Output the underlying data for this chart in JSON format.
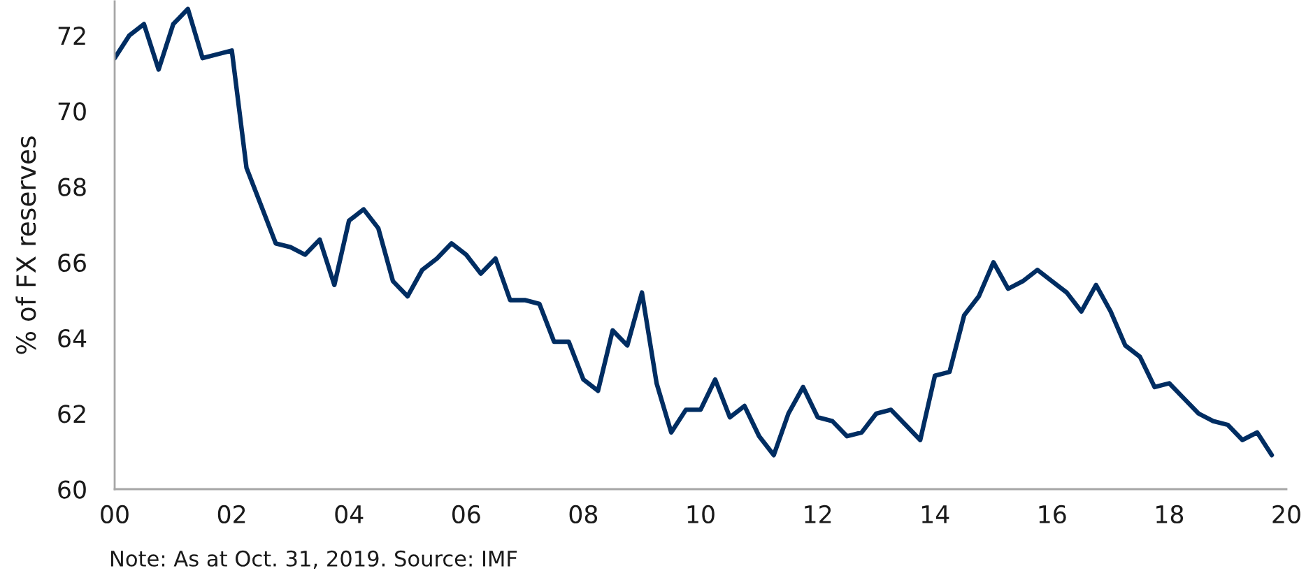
{
  "chart_data": {
    "type": "line",
    "ylabel": "% of FX reserves",
    "annotations": [
      "Note: As at Oct. 31, 2019. Source: IMF"
    ],
    "x": [
      2000,
      2000.25,
      2000.5,
      2000.75,
      2001,
      2001.25,
      2001.5,
      2001.75,
      2002,
      2002.25,
      2002.5,
      2002.75,
      2003,
      2003.25,
      2003.5,
      2003.75,
      2004,
      2004.25,
      2004.5,
      2004.75,
      2005,
      2005.25,
      2005.5,
      2005.75,
      2006,
      2006.25,
      2006.5,
      2006.75,
      2007,
      2007.25,
      2007.5,
      2007.75,
      2008,
      2008.25,
      2008.5,
      2008.75,
      2009,
      2009.25,
      2009.5,
      2009.75,
      2010,
      2010.25,
      2010.5,
      2010.75,
      2011,
      2011.25,
      2011.5,
      2011.75,
      2012,
      2012.25,
      2012.5,
      2012.75,
      2013,
      2013.25,
      2013.5,
      2013.75,
      2014,
      2014.25,
      2014.5,
      2014.75,
      2015,
      2015.25,
      2015.5,
      2015.75,
      2016,
      2016.25,
      2016.5,
      2016.75,
      2017,
      2017.25,
      2017.5,
      2017.75,
      2018,
      2018.25,
      2018.5,
      2018.75,
      2019,
      2019.25,
      2019.5,
      2019.75
    ],
    "series": [
      {
        "color": "#002d62",
        "values": [
          71.4,
          72.0,
          72.3,
          71.1,
          72.3,
          72.7,
          71.4,
          71.5,
          71.6,
          68.5,
          67.5,
          66.5,
          66.4,
          66.2,
          66.6,
          65.4,
          67.1,
          67.4,
          66.9,
          65.5,
          65.1,
          65.8,
          66.1,
          66.5,
          66.2,
          65.7,
          66.1,
          65.0,
          65.0,
          64.9,
          63.9,
          63.9,
          62.9,
          62.6,
          64.2,
          63.8,
          65.2,
          62.8,
          61.5,
          62.1,
          62.1,
          62.9,
          61.9,
          62.2,
          61.4,
          60.9,
          62.0,
          62.7,
          61.9,
          61.8,
          61.4,
          61.5,
          62.0,
          62.1,
          61.7,
          61.3,
          63.0,
          63.1,
          64.6,
          65.1,
          66.0,
          65.3,
          65.5,
          65.8,
          65.5,
          65.2,
          64.7,
          65.4,
          64.7,
          63.8,
          63.5,
          62.7,
          62.8,
          62.4,
          62.0,
          61.8,
          61.7,
          61.3,
          61.5,
          60.9
        ]
      }
    ],
    "xlim": [
      2000,
      2020
    ],
    "xticks": [
      {
        "value": 2000,
        "label": "00"
      },
      {
        "value": 2002,
        "label": "02"
      },
      {
        "value": 2004,
        "label": "04"
      },
      {
        "value": 2006,
        "label": "06"
      },
      {
        "value": 2008,
        "label": "08"
      },
      {
        "value": 2010,
        "label": "10"
      },
      {
        "value": 2012,
        "label": "12"
      },
      {
        "value": 2014,
        "label": "14"
      },
      {
        "value": 2016,
        "label": "16"
      },
      {
        "value": 2018,
        "label": "18"
      },
      {
        "value": 2020,
        "label": "20"
      }
    ],
    "ylim": [
      60,
      72.9
    ],
    "yticks": [
      60,
      62,
      64,
      66,
      68,
      70,
      72
    ],
    "line_style": "solid"
  }
}
